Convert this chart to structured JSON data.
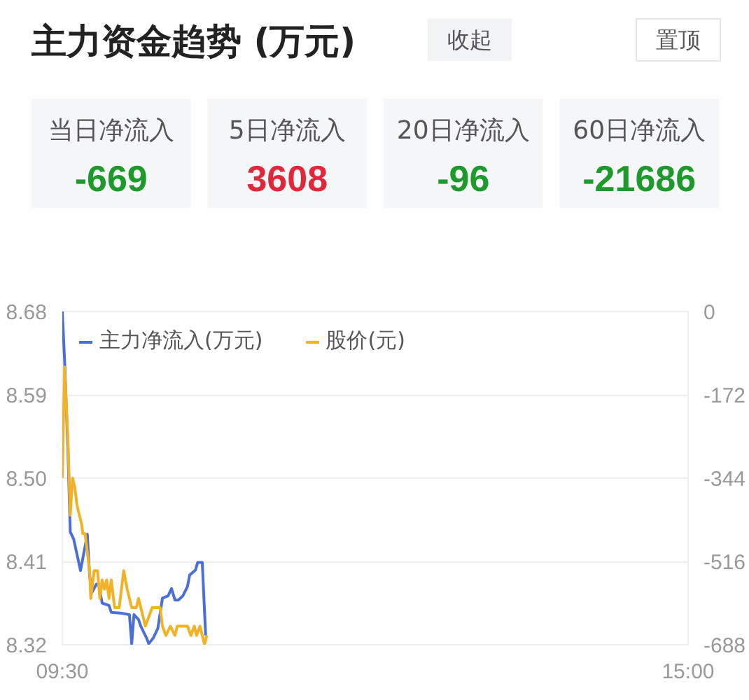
{
  "chart_data": [
    {
      "type": "other",
      "title": "主力资金趋势 (万元)",
      "annotations": [
        "收起",
        "置顶"
      ],
      "categories": [
        "当日净流入",
        "5日净流入",
        "20日净流入",
        "60日净流入"
      ],
      "values": [
        -669,
        3608,
        -96,
        -21686
      ],
      "data_labels": true
    },
    {
      "type": "line",
      "legend": "top left",
      "grid": "y",
      "xlim": [
        9.5,
        15
      ],
      "xticks": [
        {
          "value": 9.5,
          "label": "09:30"
        },
        {
          "value": 15,
          "label": "15:00"
        }
      ],
      "ylim": [
        8.32,
        8.68
      ],
      "yticks": [
        8.32,
        8.41,
        {
          "value": 8.5,
          "label": "8.50"
        },
        8.59,
        8.68
      ],
      "y2lim": [
        -688,
        0
      ],
      "y2ticks": [
        -688,
        -516,
        -344,
        -172,
        0
      ],
      "series": [
        {
          "name": "主力净流入(万元)",
          "color": "#4a6fd8",
          "axis": "y2",
          "x": [
            9.5,
            9.52,
            9.55,
            9.57,
            9.6,
            9.66,
            9.72,
            9.74,
            9.76,
            9.8,
            9.82,
            9.85,
            9.91,
            9.93,
            10.02,
            10.09,
            10.11,
            10.13,
            10.17,
            10.19,
            10.24,
            10.26,
            10.3,
            10.34,
            10.38,
            10.43,
            10.46,
            10.49,
            10.52,
            10.56,
            10.6,
            10.62,
            10.67,
            10.69,
            10.73,
            10.76
          ],
          "values": [
            0,
            -100,
            -290,
            -455,
            -470,
            -535,
            -460,
            -545,
            -580,
            -563,
            -563,
            -602,
            -607,
            -621,
            -623,
            -626,
            -686,
            -626,
            -636,
            -650,
            -674,
            -686,
            -674,
            -654,
            -592,
            -587,
            -572,
            -596,
            -596,
            -587,
            -568,
            -544,
            -534,
            -518,
            -518,
            -669
          ]
        },
        {
          "name": "股价(元)",
          "color": "#f2b227",
          "x": [
            9.5,
            9.52,
            9.55,
            9.57,
            9.59,
            9.61,
            9.63,
            9.65,
            9.67,
            9.68,
            9.7,
            9.74,
            9.75,
            9.77,
            9.78,
            9.81,
            9.83,
            9.85,
            9.87,
            9.89,
            9.91,
            9.93,
            9.94,
            9.96,
            10.0,
            10.04,
            10.07,
            10.09,
            10.11,
            10.15,
            10.17,
            10.21,
            10.23,
            10.26,
            10.29,
            10.32,
            10.36,
            10.38,
            10.41,
            10.45,
            10.49,
            10.51,
            10.6,
            10.63,
            10.66,
            10.68,
            10.71,
            10.73,
            10.75,
            10.77
          ],
          "values": [
            8.5,
            8.62,
            8.54,
            8.46,
            8.5,
            8.49,
            8.47,
            8.46,
            8.45,
            8.44,
            8.44,
            8.4,
            8.37,
            8.39,
            8.4,
            8.4,
            8.37,
            8.39,
            8.38,
            8.39,
            8.37,
            8.39,
            8.38,
            8.36,
            8.36,
            8.4,
            8.38,
            8.37,
            8.36,
            8.36,
            8.37,
            8.35,
            8.34,
            8.35,
            8.36,
            8.36,
            8.36,
            8.34,
            8.33,
            8.34,
            8.33,
            8.34,
            8.34,
            8.33,
            8.34,
            8.33,
            8.34,
            8.33,
            8.32,
            8.33
          ]
        }
      ]
    }
  ]
}
